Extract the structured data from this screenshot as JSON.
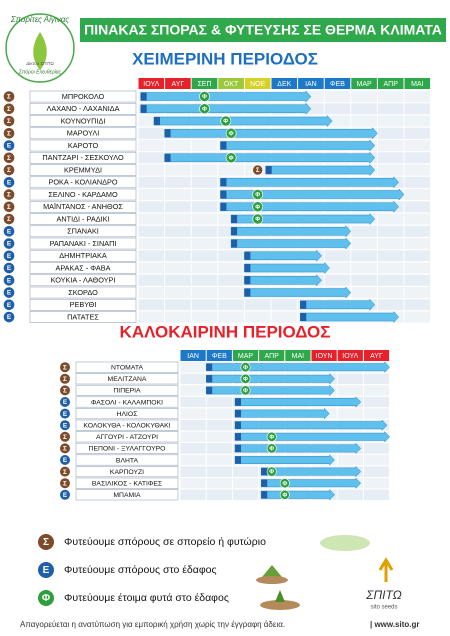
{
  "header": {
    "title": "ΠΙΝΑΚΑΣ ΣΠΟΡΑΣ & ΦΥΤΕΥΣΗΣ ΣΕ ΘΕΡΜΑ ΚΛΙΜΑΤΑ",
    "logo": [
      "Σπορίτες Αίγινας",
      "Δίκτυο ΣΠΙΤΩ",
      "Σπόροι Ελευθερίας"
    ]
  },
  "winter": {
    "title": "ΧΕΙΜΕΡΙΝΗ ΠΕΡΙΟΔΟΣ",
    "months": [
      {
        "label": "ΙΟΥΛ",
        "color": "#e8202a"
      },
      {
        "label": "ΑΥΓ",
        "color": "#e8202a"
      },
      {
        "label": "ΣΕΠ",
        "color": "#2ea84a"
      },
      {
        "label": "ΟΚΤ",
        "color": "#9cc83c"
      },
      {
        "label": "ΝΟΕ",
        "color": "#d7d126"
      },
      {
        "label": "ΔΕΚ",
        "color": "#1e78c8"
      },
      {
        "label": "ΙΑΝ",
        "color": "#1e78c8"
      },
      {
        "label": "ΦΕΒ",
        "color": "#1e78c8"
      },
      {
        "label": "ΜΑΡ",
        "color": "#2ea84a"
      },
      {
        "label": "ΑΠΡ",
        "color": "#2ea84a"
      },
      {
        "label": "ΜΑΙ",
        "color": "#2ea84a"
      }
    ],
    "rows": [
      {
        "icon": "Σ",
        "name": "ΜΠΡΟΚΟΛΟ",
        "start": 0.1,
        "end": 6.5,
        "marker": "Φ",
        "marker_at": 2.5
      },
      {
        "icon": "Σ",
        "name": "ΛΑΧΑΝΟ - ΛΑΧΑΝΙΔΑ",
        "start": 0.1,
        "end": 6.5,
        "marker": "Φ",
        "marker_at": 2.5
      },
      {
        "icon": "Σ",
        "name": "ΚΟΥΝΟΥΠΙΔΙ",
        "start": 0.6,
        "end": 7.3,
        "marker": "Φ",
        "marker_at": 3.3
      },
      {
        "icon": "Σ",
        "name": "ΜΑΡΟΥΛΙ",
        "start": 1.0,
        "end": 9.0,
        "marker": "Φ",
        "marker_at": 3.5
      },
      {
        "icon": "Ε",
        "name": "ΚΑΡΟΤΟ",
        "start": 3.1,
        "end": 8.9
      },
      {
        "icon": "Σ",
        "name": "ΠΑΝΤΖΑΡΙ - ΣΕΣΚΟΥΛΟ",
        "start": 1.0,
        "end": 8.9,
        "marker": "Φ",
        "marker_at": 3.5
      },
      {
        "icon": "Σ",
        "name": "ΚΡΕΜΜΥΔΙ",
        "start": 4.8,
        "end": 8.9,
        "marker": "Σ",
        "marker_at": 4.5
      },
      {
        "icon": "Ε",
        "name": "ΡΟΚΑ - ΚΟΛΙΑΝΔΡΟ",
        "start": 3.1,
        "end": 9.8
      },
      {
        "icon": "Σ",
        "name": "ΣΕΛΙΝΟ - ΚΑΡΔΑΜΟ",
        "start": 3.1,
        "end": 10.0,
        "marker": "Φ",
        "marker_at": 4.5
      },
      {
        "icon": "Σ",
        "name": "ΜΑΪΝΤΑΝΟΣ - ΑΝΗΘΟΣ",
        "start": 3.1,
        "end": 9.8,
        "marker": "Φ",
        "marker_at": 4.5
      },
      {
        "icon": "Σ",
        "name": "ΑΝΤΙΔΙ - ΡΑΔΙΚΙ",
        "start": 3.5,
        "end": 8.9,
        "marker": "Φ",
        "marker_at": 4.5
      },
      {
        "icon": "Ε",
        "name": "ΣΠΑΝΑΚΙ",
        "start": 3.5,
        "end": 8.0
      },
      {
        "icon": "Ε",
        "name": "ΡΑΠΑΝΑΚΙ - ΣΙΝΑΠΙ",
        "start": 3.5,
        "end": 8.0
      },
      {
        "icon": "Ε",
        "name": "ΔΗΜΗΤΡΙΑΚΑ",
        "start": 4.0,
        "end": 6.9
      },
      {
        "icon": "Ε",
        "name": "ΑΡΑΚΑΣ - ΦΑΒΑ",
        "start": 4.0,
        "end": 7.2
      },
      {
        "icon": "Ε",
        "name": "ΚΟΥΚΙΑ - ΛΑΘΟΥΡΙ",
        "start": 4.0,
        "end": 6.9
      },
      {
        "icon": "Ε",
        "name": "ΣΚΟΡΔΟ",
        "start": 4.0,
        "end": 8.0
      },
      {
        "icon": "Ε",
        "name": "ΡΕΒΥΘΙ",
        "start": 6.1,
        "end": 8.9
      },
      {
        "icon": "Ε",
        "name": "ΠΑΤΑΤΕΣ",
        "start": 6.1,
        "end": 9.8
      }
    ]
  },
  "summer": {
    "title": "ΚΑΛΟΚΑΙΡΙΝΗ ΠΕΡΙΟΔΟΣ",
    "months": [
      {
        "label": "ΙΑΝ",
        "color": "#1e78c8"
      },
      {
        "label": "ΦΕΒ",
        "color": "#1e78c8"
      },
      {
        "label": "ΜΑΡ",
        "color": "#2ea84a"
      },
      {
        "label": "ΑΠΡ",
        "color": "#2ea84a"
      },
      {
        "label": "ΜΑΙ",
        "color": "#2ea84a"
      },
      {
        "label": "ΙΟΥΝ",
        "color": "#e8202a"
      },
      {
        "label": "ΙΟΥΛ",
        "color": "#e8202a"
      },
      {
        "label": "ΑΥΓ",
        "color": "#e8202a"
      }
    ],
    "rows": [
      {
        "icon": "Σ",
        "name": "ΝΤΟΜΑΤΑ",
        "start": 1.0,
        "end": 8.0,
        "marker": "Φ",
        "marker_at": 2.5
      },
      {
        "icon": "Σ",
        "name": "ΜΕΛΙΤΖΑΝΑ",
        "start": 1.0,
        "end": 5.9,
        "marker": "Φ",
        "marker_at": 2.5
      },
      {
        "icon": "Σ",
        "name": "ΠΙΠΕΡΙΑ",
        "start": 1.0,
        "end": 5.9,
        "marker": "Φ",
        "marker_at": 2.5
      },
      {
        "icon": "Ε",
        "name": "ΦΑΣΟΛΙ - ΚΑΛΑΜΠΟΚΙ",
        "start": 2.1,
        "end": 6.9
      },
      {
        "icon": "Ε",
        "name": "ΗΛΙΟΣ",
        "start": 2.1,
        "end": 5.7
      },
      {
        "icon": "Ε",
        "name": "ΚΟΛΟΚΥΘΑ - ΚΟΛΟΚΥΘΑΚΙ",
        "start": 2.1,
        "end": 7.9
      },
      {
        "icon": "Σ",
        "name": "ΑΓΓΟΥΡΙ - ΑΤΖΟΥΡΙ",
        "start": 2.1,
        "end": 8.0,
        "marker": "Φ",
        "marker_at": 3.5
      },
      {
        "icon": "Σ",
        "name": "ΠΕΠΟΝΙ - ΞΥΛΑΓΓΟΥΡΟ",
        "start": 2.1,
        "end": 6.9,
        "marker": "Φ",
        "marker_at": 3.5
      },
      {
        "icon": "Ε",
        "name": "ΒΛΗΤΑ",
        "start": 2.1,
        "end": 5.9
      },
      {
        "icon": "Σ",
        "name": "ΚΑΡΠΟΥΖΙ",
        "start": 3.1,
        "end": 6.9,
        "marker": "Φ",
        "marker_at": 3.5
      },
      {
        "icon": "Σ",
        "name": "ΒΑΣΙΛΙΚΟΣ - ΚΑΤΙΦΕΣ",
        "start": 3.1,
        "end": 6.9,
        "marker": "Φ",
        "marker_at": 4.0
      },
      {
        "icon": "Ε",
        "name": "ΜΠΑΜΙΑ",
        "start": 3.1,
        "end": 5.9,
        "marker": "Φ",
        "marker_at": 4.0
      }
    ]
  },
  "legend": [
    {
      "icon": "Σ",
      "color": "#7b4b2a",
      "text": "Φυτεύουμε σπόρους σε σπορείο ή φυτώριο"
    },
    {
      "icon": "Ε",
      "color": "#1f5fa8",
      "text": "Φυτεύουμε σπόρους στο έδαφος"
    },
    {
      "icon": "Φ",
      "color": "#2e9e3e",
      "text": "Φυτεύουμε έτοιμα φυτά στο έδαφος"
    }
  ],
  "brand": {
    "name": "ΣΠΙΤΩ",
    "sub": "sito seeds"
  },
  "footer": {
    "notice": "Απαγορεύεται η ανατύπωση για εμπορική χρήση χωρίς την έγγραφη άδεια.",
    "site": "| www.sito.gr"
  }
}
